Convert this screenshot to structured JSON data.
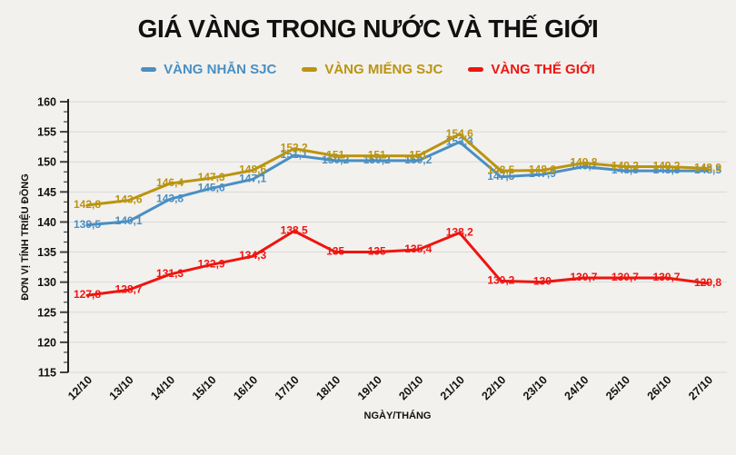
{
  "title": "GIÁ VÀNG TRONG NƯỚC VÀ THẾ GIỚI",
  "legend": [
    {
      "label": "VÀNG NHẪN SJC",
      "color": "#4a8fc2"
    },
    {
      "label": "VÀNG MIẾNG SJC",
      "color": "#bb9410"
    },
    {
      "label": "VÀNG THẾ GIỚI",
      "color": "#ee1510"
    }
  ],
  "colors": {
    "background": "#f2f1ee",
    "grid": "#d9d9d9",
    "axis": "#222222",
    "tick": "#444444",
    "blue": "#4a8fc2",
    "gold": "#bb9410",
    "red": "#ee1510"
  },
  "chart_data": {
    "type": "line",
    "title": "GIÁ VÀNG TRONG NƯỚC VÀ THẾ GIỚI",
    "xlabel": "NGÀY/THÁNG",
    "ylabel": "ĐƠN VỊ TÍNH TRIỆU ĐỒNG",
    "ylim": [
      115,
      160
    ],
    "ytick_step": 5,
    "yticks": [
      115,
      120,
      125,
      130,
      135,
      140,
      145,
      150,
      155,
      160
    ],
    "minor_ticks_per_major": 2,
    "grid": true,
    "legend_position": "top",
    "categories": [
      "12/10",
      "13/10",
      "14/10",
      "15/10",
      "16/10",
      "17/10",
      "18/10",
      "19/10",
      "20/10",
      "21/10",
      "22/10",
      "23/10",
      "24/10",
      "25/10",
      "26/10",
      "27/10"
    ],
    "series": [
      {
        "name": "VÀNG NHẪN SJC",
        "color": "#4a8fc2",
        "values": [
          139.5,
          140.1,
          143.8,
          145.6,
          147.1,
          151.1,
          150.2,
          150.2,
          150.2,
          153.3,
          147.5,
          147.9,
          149.2,
          148.5,
          148.5,
          148.5
        ],
        "labels": [
          "139,5",
          "140,1",
          "143,8",
          "145,6",
          "147,1",
          "151,1",
          "150,2",
          "150,2",
          "150,2",
          "153,3",
          "147,5",
          "147,9",
          "149,2",
          "148,5",
          "148,5",
          "148,5"
        ]
      },
      {
        "name": "VÀNG MIẾNG SJC",
        "color": "#bb9410",
        "values": [
          142.8,
          143.6,
          146.4,
          147.3,
          148.6,
          152.2,
          151,
          151,
          151,
          154.6,
          148.5,
          148.6,
          149.8,
          149.2,
          149.2,
          148.9
        ],
        "labels": [
          "142,8",
          "143,6",
          "146,4",
          "147,3",
          "148,6",
          "152,2",
          "151",
          "151",
          "151",
          "154,6",
          "148,5",
          "148,6",
          "149,8",
          "149,2",
          "149,2",
          "148,9"
        ]
      },
      {
        "name": "VÀNG THẾ GIỚI",
        "color": "#ee1510",
        "values": [
          127.8,
          128.7,
          131.3,
          132.9,
          134.3,
          138.5,
          135,
          135,
          135.4,
          138.2,
          130.2,
          130,
          130.7,
          130.7,
          130.7,
          129.8
        ],
        "labels": [
          "127,8",
          "128,7",
          "131,3",
          "132,9",
          "134,3",
          "138,5",
          "135",
          "135",
          "135,4",
          "138,2",
          "130,2",
          "130",
          "130,7",
          "130,7",
          "130,7",
          "129,8"
        ]
      }
    ]
  }
}
